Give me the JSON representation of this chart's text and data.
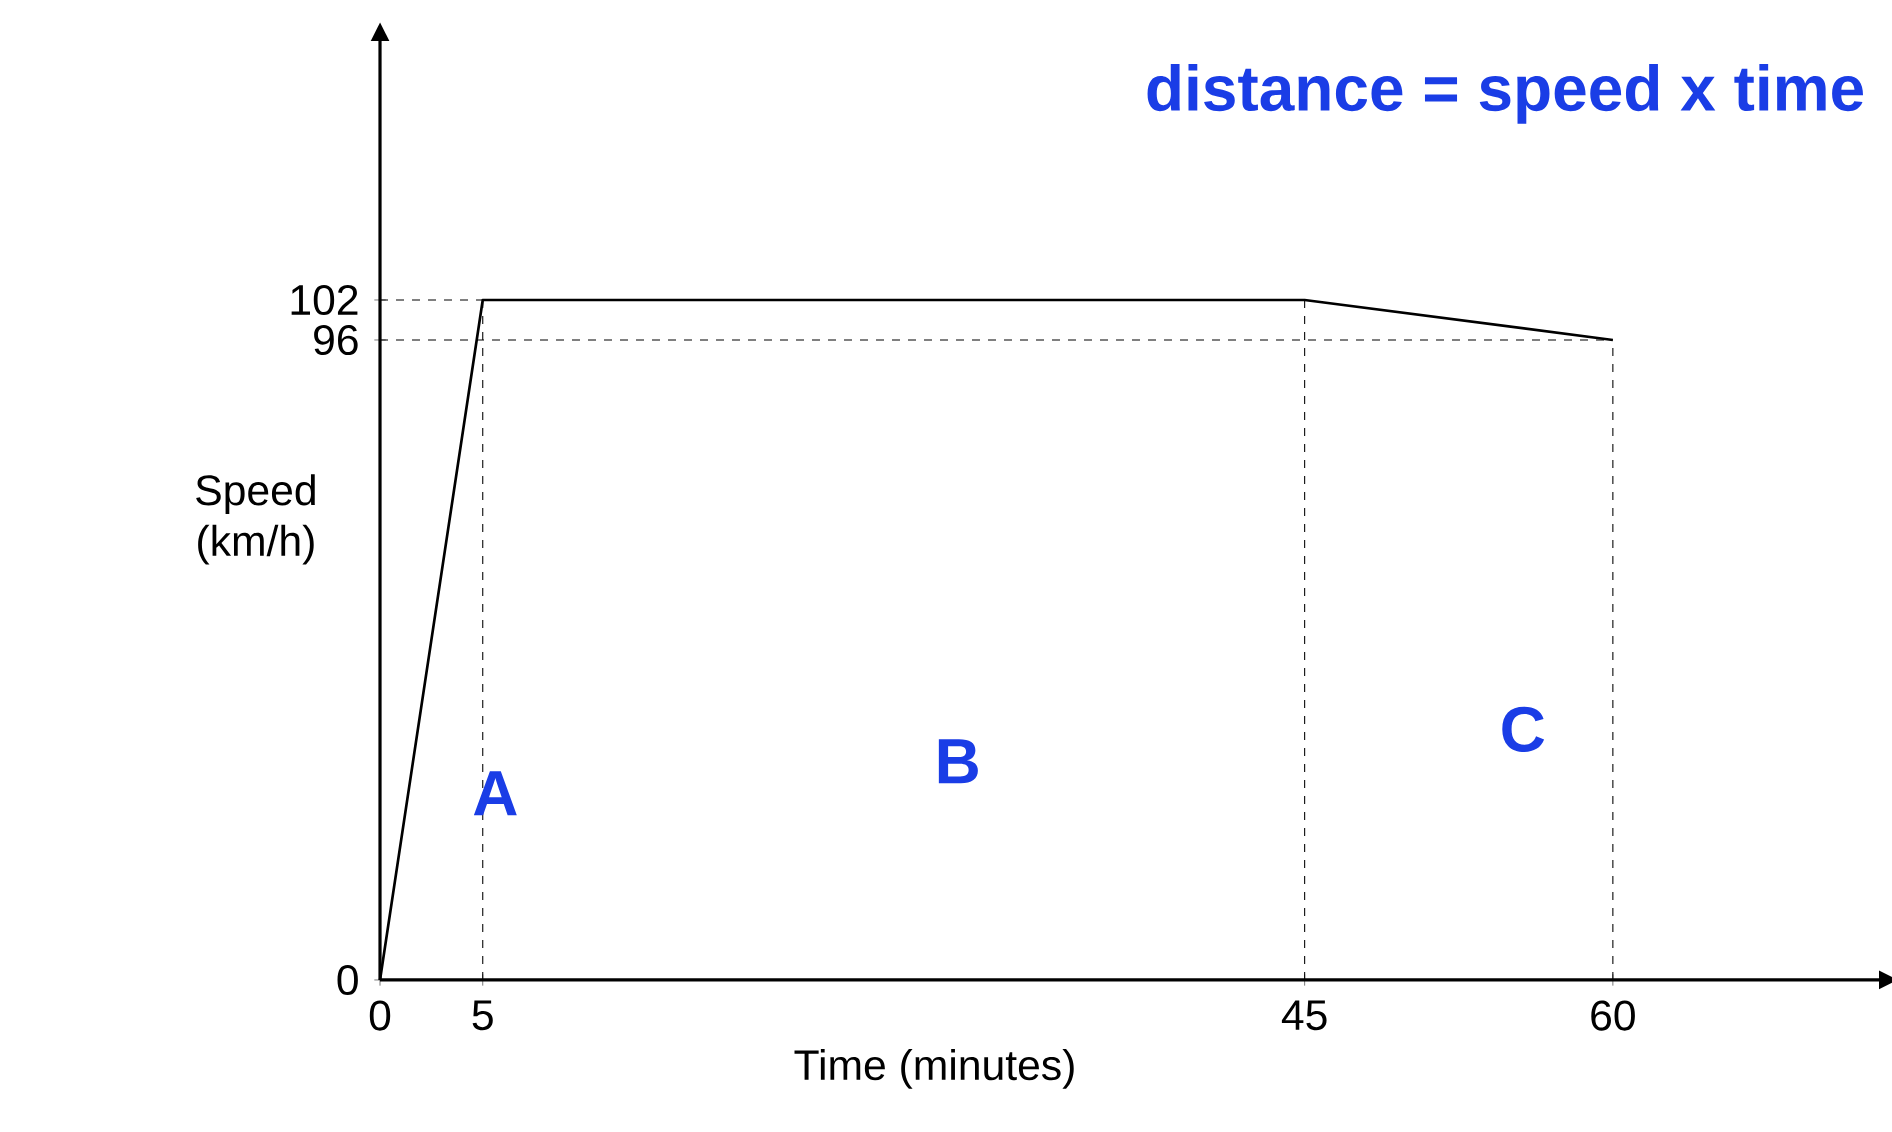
{
  "chart_data": {
    "type": "line",
    "xlabel": "Time (minutes)",
    "ylabel": "Speed (km/h)",
    "x": [
      0,
      5,
      45,
      60
    ],
    "series": [
      {
        "color": "#000000",
        "values": [
          0,
          102,
          102,
          96
        ]
      }
    ],
    "xlim": [
      0,
      73
    ],
    "ylim": [
      0,
      141
    ],
    "xticks": [
      0,
      5,
      45,
      60
    ],
    "yticks": [
      0,
      96,
      102
    ],
    "grid": false,
    "marker": "none",
    "line_style": "solid",
    "ref_lines": [
      {
        "axis": "y",
        "value": 102,
        "line_style": "dashed"
      },
      {
        "axis": "y",
        "value": 96,
        "line_style": "dashed"
      },
      {
        "axis": "x",
        "value": 5,
        "line_style": "dashed"
      },
      {
        "axis": "x",
        "value": 45,
        "line_style": "dashed"
      },
      {
        "axis": "x",
        "value": 60,
        "line_style": "dashed"
      }
    ],
    "annotations": [
      "distance = speed x time",
      "A",
      "B",
      "C"
    ]
  }
}
